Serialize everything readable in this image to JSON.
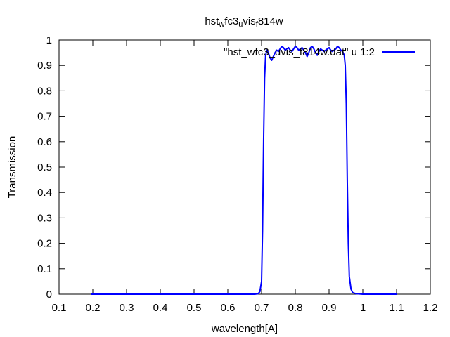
{
  "chart_data": {
    "type": "line",
    "title_parts": [
      {
        "text": "hst",
        "sub": false
      },
      {
        "text": "w",
        "sub": true
      },
      {
        "text": "fc3",
        "sub": false
      },
      {
        "text": "u",
        "sub": true
      },
      {
        "text": "vis",
        "sub": false
      },
      {
        "text": "f",
        "sub": true
      },
      {
        "text": "814w",
        "sub": false
      }
    ],
    "xlabel": "wavelength[A]",
    "ylabel": "Transmission",
    "xlim": [
      0.1,
      1.2
    ],
    "ylim": [
      0,
      1
    ],
    "xticks": [
      0.1,
      0.2,
      0.3,
      0.4,
      0.5,
      0.6,
      0.7,
      0.8,
      0.9,
      1.0,
      1.1,
      1.2
    ],
    "xtick_labels": [
      "0.1",
      "0.2",
      "0.3",
      "0.4",
      "0.5",
      "0.6",
      "0.7",
      "0.8",
      "0.9",
      "1",
      "1.1",
      "1.2"
    ],
    "yticks": [
      0,
      0.1,
      0.2,
      0.3,
      0.4,
      0.5,
      0.6,
      0.7,
      0.8,
      0.9,
      1.0
    ],
    "ytick_labels": [
      "0",
      "0.1",
      "0.2",
      "0.3",
      "0.4",
      "0.5",
      "0.6",
      "0.7",
      "0.8",
      "0.9",
      "1"
    ],
    "grid": false,
    "legend_position": "top-right",
    "series": [
      {
        "name": "\"hst_wfc3_uvis_f814w.dat\" u 1:2",
        "color": "#0000ff",
        "x": [
          0.195,
          0.3,
          0.4,
          0.5,
          0.6,
          0.68,
          0.69,
          0.695,
          0.7,
          0.703,
          0.706,
          0.709,
          0.712,
          0.716,
          0.72,
          0.725,
          0.73,
          0.735,
          0.74,
          0.745,
          0.75,
          0.755,
          0.76,
          0.765,
          0.77,
          0.775,
          0.78,
          0.785,
          0.79,
          0.795,
          0.8,
          0.805,
          0.81,
          0.815,
          0.82,
          0.825,
          0.83,
          0.835,
          0.84,
          0.845,
          0.85,
          0.855,
          0.86,
          0.865,
          0.87,
          0.875,
          0.88,
          0.885,
          0.89,
          0.895,
          0.9,
          0.905,
          0.91,
          0.915,
          0.92,
          0.925,
          0.93,
          0.935,
          0.94,
          0.945,
          0.948,
          0.951,
          0.954,
          0.957,
          0.96,
          0.965,
          0.97,
          0.98,
          1.0,
          1.05,
          1.1
        ],
        "y": [
          0.0,
          0.0,
          0.0,
          0.0,
          0.0,
          0.0,
          0.002,
          0.01,
          0.05,
          0.25,
          0.6,
          0.85,
          0.94,
          0.96,
          0.95,
          0.93,
          0.92,
          0.935,
          0.95,
          0.96,
          0.955,
          0.965,
          0.975,
          0.97,
          0.96,
          0.965,
          0.97,
          0.96,
          0.955,
          0.965,
          0.975,
          0.97,
          0.96,
          0.965,
          0.97,
          0.96,
          0.95,
          0.935,
          0.95,
          0.97,
          0.975,
          0.965,
          0.95,
          0.94,
          0.955,
          0.965,
          0.96,
          0.955,
          0.96,
          0.965,
          0.97,
          0.96,
          0.955,
          0.96,
          0.965,
          0.975,
          0.97,
          0.96,
          0.955,
          0.94,
          0.9,
          0.75,
          0.45,
          0.2,
          0.07,
          0.02,
          0.006,
          0.002,
          0.0,
          0.0,
          0.0
        ]
      }
    ]
  }
}
